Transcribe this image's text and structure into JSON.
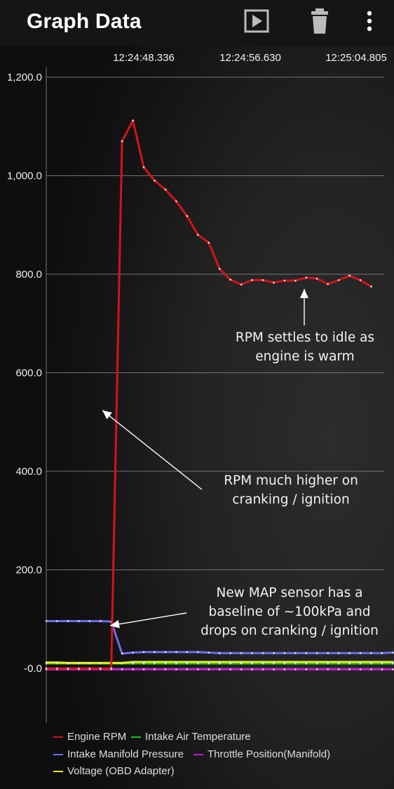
{
  "app_bar": {
    "title": "Graph Data",
    "play_icon": "play-icon",
    "delete_icon": "trash-icon",
    "menu_icon": "more-vert-icon"
  },
  "annotations": {
    "idle": "RPM settles to idle as engine is warm",
    "idle_line1": "RPM settles to idle as",
    "idle_line2": "engine is warm",
    "cranking_line1": "RPM much higher on",
    "cranking_line2": "cranking / ignition",
    "map_line1": "New MAP sensor has a",
    "map_line2": "baseline of ~100kPa and",
    "map_line3": "drops on cranking / ignition"
  },
  "colors": {
    "rpm": "#d3141a",
    "iat": "#18c21a",
    "map": "#6a6ef0",
    "throttle": "#c31ad0",
    "voltage": "#e8ef1c",
    "grid": "#8a8a8a",
    "text": "#ffffff"
  },
  "chart_data": {
    "type": "line",
    "x_tick_labels": [
      "12:24:48.336",
      "12:24:56.630",
      "12:25:04.805"
    ],
    "y_tick_labels": [
      "1,200.0",
      "1,000.0",
      "800.0",
      "600.0",
      "400.0",
      "200.0",
      "-0.0"
    ],
    "ylim": [
      0,
      1200
    ],
    "grid": true,
    "legend_position": "bottom",
    "sample_index": [
      0,
      1,
      2,
      3,
      4,
      5,
      6,
      7,
      8,
      9,
      10,
      11,
      12,
      13,
      14,
      15,
      16,
      17,
      18,
      19,
      20,
      21,
      22,
      23,
      24,
      25,
      26,
      27,
      28,
      29,
      30,
      31,
      32
    ],
    "series": [
      {
        "name": "Engine RPM",
        "values": [
          0,
          0,
          0,
          0,
          0,
          0,
          0,
          1070,
          1112,
          1017,
          990,
          972,
          948,
          918,
          880,
          864,
          811,
          789,
          779,
          788,
          788,
          783,
          787,
          787,
          793,
          791,
          780,
          788,
          797,
          788,
          775,
          null,
          null
        ]
      },
      {
        "name": "Intake Air Temperature",
        "values": [
          10,
          10,
          10,
          10,
          10,
          10,
          10,
          10,
          10,
          10,
          10,
          10,
          10,
          10,
          10,
          10,
          10,
          10,
          10,
          10,
          10,
          10,
          10,
          10,
          10,
          10,
          10,
          10,
          10,
          10,
          10,
          10,
          10
        ]
      },
      {
        "name": "Intake Manifold Pressure",
        "values": [
          96,
          96,
          96,
          96,
          96,
          96,
          95,
          30,
          32,
          33,
          33,
          33,
          33,
          33,
          33,
          32,
          31,
          31,
          31,
          31,
          31,
          31,
          31,
          31,
          31,
          31,
          31,
          31,
          31,
          31,
          31,
          31,
          32
        ]
      },
      {
        "name": "Throttle Position(Manifold)",
        "values": [
          -2,
          -2,
          -2,
          -2,
          -2,
          -2,
          -2,
          -2,
          -2,
          -2,
          -2,
          -2,
          -2,
          -2,
          -2,
          -2,
          -2,
          -2,
          -2,
          -2,
          -2,
          -2,
          -2,
          -2,
          -2,
          -2,
          -2,
          -2,
          -2,
          -2,
          -2,
          -2,
          -2
        ]
      },
      {
        "name": "Voltage (OBD Adapter)",
        "values": [
          12,
          12,
          11,
          11,
          11,
          11,
          11,
          11,
          13,
          13,
          13,
          13,
          13,
          13,
          13,
          13,
          13,
          13,
          13,
          13,
          13,
          13,
          13,
          13,
          13,
          13,
          13,
          13,
          13,
          13,
          13,
          13,
          13
        ]
      }
    ]
  },
  "legend": {
    "items": [
      {
        "label": "Engine RPM",
        "color": "#d3141a"
      },
      {
        "label": "Intake Air Temperature",
        "color": "#18c21a"
      },
      {
        "label": "Intake Manifold Pressure",
        "color": "#6a6ef0"
      },
      {
        "label": "Throttle Position(Manifold)",
        "color": "#c31ad0"
      },
      {
        "label": "Voltage (OBD Adapter)",
        "color": "#e8ef1c"
      }
    ]
  }
}
